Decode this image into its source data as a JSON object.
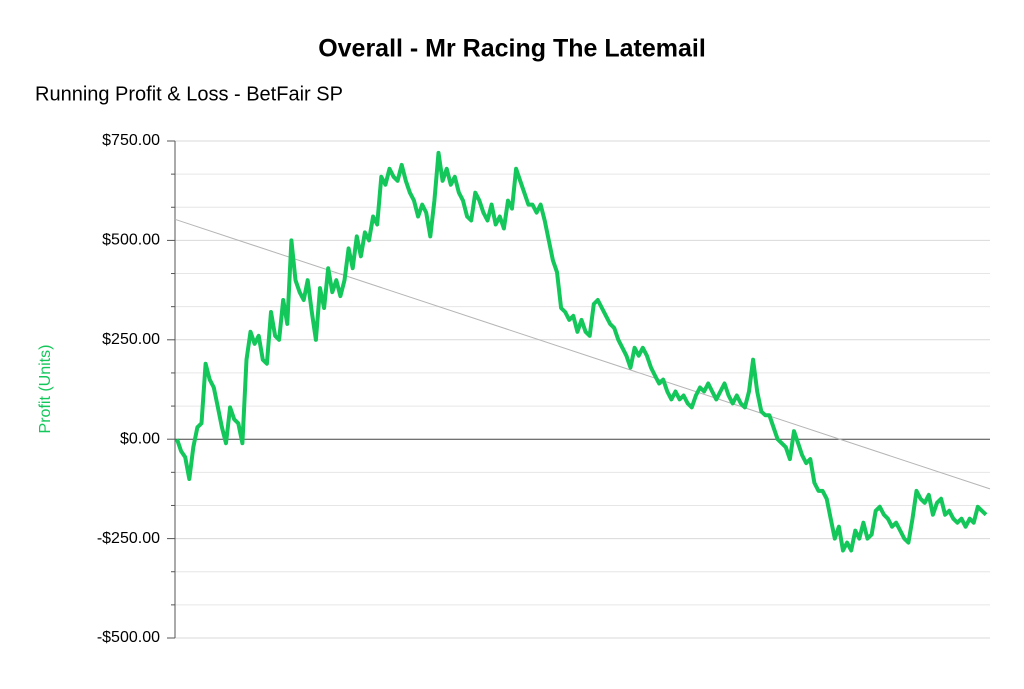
{
  "chart_data": {
    "type": "line",
    "title": "Overall - Mr Racing The Latemail",
    "subtitle": "Running Profit & Loss - BetFair SP",
    "y_label": "Profit (Units)",
    "series": [
      {
        "color": "#13c75a",
        "values": [
          0,
          -30,
          -45,
          -100,
          -20,
          30,
          40,
          190,
          150,
          130,
          80,
          30,
          -10,
          80,
          50,
          40,
          -10,
          200,
          270,
          240,
          260,
          200,
          190,
          320,
          260,
          250,
          350,
          290,
          500,
          400,
          370,
          350,
          400,
          320,
          250,
          380,
          330,
          430,
          370,
          400,
          360,
          400,
          480,
          430,
          510,
          460,
          520,
          500,
          560,
          540,
          660,
          640,
          680,
          660,
          650,
          690,
          650,
          620,
          600,
          560,
          590,
          570,
          510,
          600,
          720,
          650,
          680,
          640,
          660,
          620,
          600,
          560,
          550,
          620,
          600,
          570,
          550,
          590,
          540,
          560,
          530,
          600,
          580,
          680,
          650,
          620,
          590,
          590,
          570,
          590,
          550,
          500,
          450,
          420,
          330,
          320,
          300,
          310,
          270,
          300,
          270,
          260,
          340,
          350,
          330,
          310,
          290,
          280,
          250,
          230,
          210,
          180,
          230,
          210,
          230,
          210,
          180,
          160,
          140,
          150,
          120,
          100,
          120,
          100,
          110,
          90,
          80,
          110,
          130,
          120,
          140,
          120,
          100,
          120,
          140,
          110,
          90,
          110,
          90,
          80,
          120,
          200,
          120,
          70,
          60,
          60,
          30,
          0,
          -10,
          -20,
          -50,
          20,
          -10,
          -40,
          -60,
          -50,
          -110,
          -130,
          -130,
          -150,
          -200,
          -250,
          -220,
          -280,
          -260,
          -280,
          -230,
          -250,
          -210,
          -250,
          -240,
          -180,
          -170,
          -190,
          -200,
          -220,
          -210,
          -230,
          -250,
          -260,
          -200,
          -130,
          -150,
          -160,
          -140,
          -190,
          -160,
          -150,
          -190,
          -180,
          -200,
          -210,
          -200,
          -220,
          -200,
          -210,
          -170,
          -180,
          -190
        ]
      }
    ],
    "trendline": [
      553,
      -125
    ],
    "trendline_color": "#b5b5b5",
    "ylim": [
      -500,
      750
    ],
    "yticks": [
      {
        "value": -500,
        "label": "-$500.00"
      },
      {
        "value": -250,
        "label": "-$250.00"
      },
      {
        "value": 0,
        "label": "$0.00"
      },
      {
        "value": 250,
        "label": "$250.00"
      },
      {
        "value": 500,
        "label": "$500.00"
      },
      {
        "value": 750,
        "label": "$750.00"
      }
    ],
    "minor_ticks_between": 2,
    "grid": true
  }
}
